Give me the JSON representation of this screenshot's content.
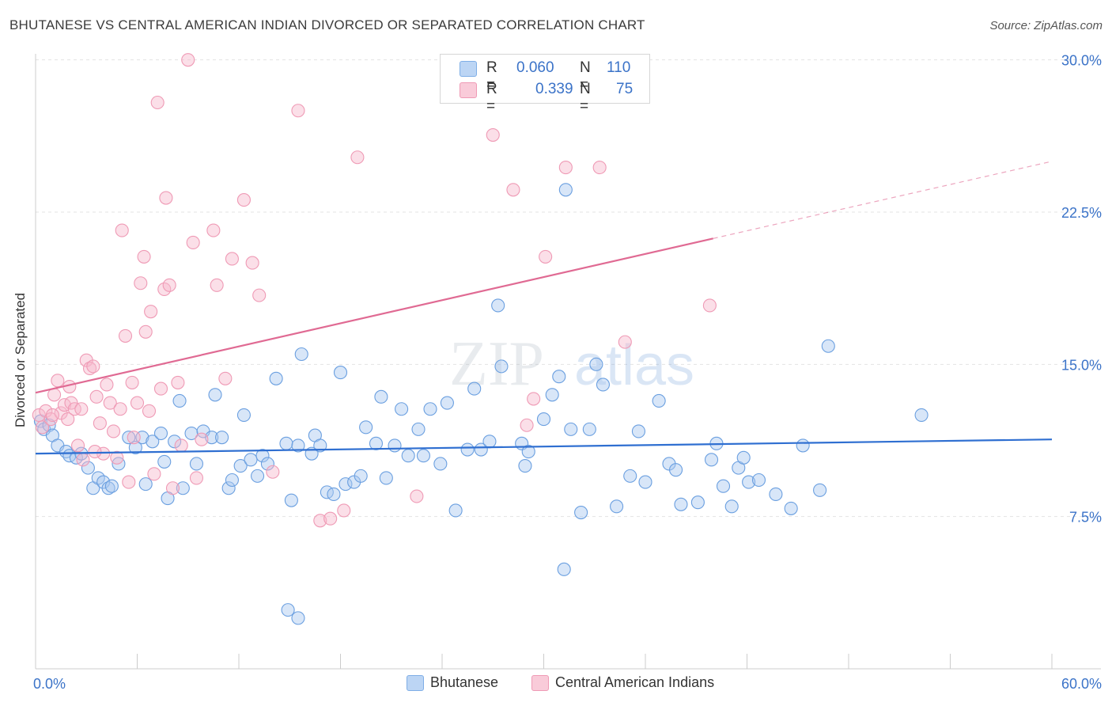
{
  "title": "BHUTANESE VS CENTRAL AMERICAN INDIAN DIVORCED OR SEPARATED CORRELATION CHART",
  "source": "Source: ZipAtlas.com",
  "watermark": {
    "zip": "ZIP",
    "atlas": "atlas"
  },
  "legend": {
    "r_label": "R =",
    "n_label": "N =",
    "rows": [
      {
        "r": "0.060",
        "n": "110",
        "color": "#a9c8f0"
      },
      {
        "r": "0.339",
        "n": "75",
        "color": "#f6b8cc"
      }
    ]
  },
  "chart_data": {
    "type": "scatter",
    "title": "BHUTANESE VS CENTRAL AMERICAN INDIAN DIVORCED OR SEPARATED CORRELATION CHART",
    "xlabel": "",
    "ylabel": "Divorced or Separated",
    "xlim": [
      0,
      60
    ],
    "ylim": [
      0,
      31
    ],
    "x_tick_labels": [
      "0.0%",
      "60.0%"
    ],
    "y_ticks": [
      7.5,
      15.0,
      22.5,
      30.0
    ],
    "y_tick_labels": [
      "7.5%",
      "15.0%",
      "22.5%",
      "30.0%"
    ],
    "grid": true,
    "legend_position": "bottom",
    "series": [
      {
        "name": "Bhutanese",
        "color": "#6a9fe0",
        "fill": "#a9c8f0",
        "line_color": "#2f6fd1",
        "trend": {
          "x0": 0,
          "y0": 10.6,
          "x1": 60,
          "y1": 11.3
        },
        "points": [
          [
            0.3,
            12.2
          ],
          [
            0.5,
            11.8
          ],
          [
            0.8,
            12.0
          ],
          [
            1.0,
            11.5
          ],
          [
            1.3,
            11.0
          ],
          [
            1.8,
            10.7
          ],
          [
            2.0,
            10.5
          ],
          [
            2.4,
            10.4
          ],
          [
            2.7,
            10.6
          ],
          [
            3.1,
            9.9
          ],
          [
            3.4,
            8.9
          ],
          [
            3.7,
            9.4
          ],
          [
            4.0,
            9.2
          ],
          [
            4.3,
            8.9
          ],
          [
            4.5,
            9.0
          ],
          [
            4.9,
            10.1
          ],
          [
            5.5,
            11.4
          ],
          [
            5.9,
            10.9
          ],
          [
            6.3,
            11.4
          ],
          [
            6.5,
            9.1
          ],
          [
            6.9,
            11.2
          ],
          [
            7.4,
            11.6
          ],
          [
            7.6,
            10.2
          ],
          [
            7.8,
            8.4
          ],
          [
            8.2,
            11.2
          ],
          [
            8.5,
            13.2
          ],
          [
            8.7,
            8.9
          ],
          [
            9.2,
            11.6
          ],
          [
            9.5,
            10.1
          ],
          [
            9.9,
            11.7
          ],
          [
            10.4,
            11.4
          ],
          [
            10.6,
            13.5
          ],
          [
            11.0,
            11.4
          ],
          [
            11.4,
            8.9
          ],
          [
            11.6,
            9.3
          ],
          [
            12.1,
            10.0
          ],
          [
            12.3,
            12.5
          ],
          [
            12.7,
            10.3
          ],
          [
            13.1,
            9.5
          ],
          [
            13.4,
            10.5
          ],
          [
            13.7,
            10.1
          ],
          [
            14.2,
            14.3
          ],
          [
            14.8,
            11.1
          ],
          [
            15.1,
            8.3
          ],
          [
            15.5,
            11.0
          ],
          [
            15.7,
            15.5
          ],
          [
            16.3,
            10.6
          ],
          [
            16.5,
            11.5
          ],
          [
            17.2,
            8.7
          ],
          [
            17.6,
            8.6
          ],
          [
            18.0,
            14.6
          ],
          [
            18.3,
            9.1
          ],
          [
            18.8,
            9.2
          ],
          [
            19.2,
            9.5
          ],
          [
            19.5,
            11.9
          ],
          [
            20.1,
            11.1
          ],
          [
            20.4,
            13.4
          ],
          [
            20.7,
            9.4
          ],
          [
            21.2,
            11.0
          ],
          [
            21.6,
            12.8
          ],
          [
            22.0,
            10.5
          ],
          [
            22.6,
            11.8
          ],
          [
            22.9,
            10.5
          ],
          [
            23.3,
            12.8
          ],
          [
            23.9,
            10.1
          ],
          [
            24.3,
            13.1
          ],
          [
            24.8,
            7.8
          ],
          [
            25.5,
            10.8
          ],
          [
            25.9,
            13.8
          ],
          [
            26.3,
            10.8
          ],
          [
            26.8,
            11.2
          ],
          [
            27.5,
            14.9
          ],
          [
            28.7,
            11.1
          ],
          [
            28.9,
            10.0
          ],
          [
            29.1,
            10.7
          ],
          [
            30.0,
            12.3
          ],
          [
            30.5,
            13.5
          ],
          [
            30.9,
            14.4
          ],
          [
            31.2,
            4.9
          ],
          [
            31.6,
            11.8
          ],
          [
            32.2,
            7.7
          ],
          [
            32.7,
            11.8
          ],
          [
            33.1,
            15.0
          ],
          [
            33.5,
            14.0
          ],
          [
            34.3,
            8.0
          ],
          [
            35.1,
            9.5
          ],
          [
            35.6,
            11.7
          ],
          [
            36.0,
            9.2
          ],
          [
            36.8,
            13.2
          ],
          [
            37.4,
            10.1
          ],
          [
            37.8,
            9.8
          ],
          [
            38.1,
            8.1
          ],
          [
            39.1,
            8.2
          ],
          [
            39.9,
            10.3
          ],
          [
            40.2,
            11.1
          ],
          [
            40.6,
            9.0
          ],
          [
            41.1,
            8.0
          ],
          [
            41.5,
            9.9
          ],
          [
            41.8,
            10.4
          ],
          [
            42.1,
            9.2
          ],
          [
            42.7,
            9.3
          ],
          [
            43.7,
            8.6
          ],
          [
            44.6,
            7.9
          ],
          [
            45.3,
            11.0
          ],
          [
            46.3,
            8.8
          ],
          [
            46.8,
            15.9
          ],
          [
            52.3,
            12.5
          ],
          [
            31.3,
            23.6
          ],
          [
            27.3,
            17.9
          ],
          [
            14.9,
            2.9
          ],
          [
            15.5,
            2.5
          ],
          [
            16.8,
            11.0
          ]
        ]
      },
      {
        "name": "Central American Indians",
        "color": "#ef9ab5",
        "fill": "#f6b8cc",
        "line_color": "#e06a93",
        "trend": {
          "x0": 0,
          "y0": 13.6,
          "x1": 40,
          "y1": 21.2
        },
        "trend_dashed": {
          "x0": 40,
          "y0": 21.2,
          "x1": 60,
          "y1": 25.0
        },
        "points": [
          [
            0.2,
            12.5
          ],
          [
            0.4,
            11.9
          ],
          [
            0.6,
            12.7
          ],
          [
            0.9,
            12.3
          ],
          [
            1.1,
            13.5
          ],
          [
            1.3,
            14.2
          ],
          [
            1.5,
            12.6
          ],
          [
            1.7,
            13.0
          ],
          [
            1.9,
            12.3
          ],
          [
            2.1,
            13.1
          ],
          [
            2.3,
            12.8
          ],
          [
            2.5,
            11.0
          ],
          [
            2.7,
            12.8
          ],
          [
            2.8,
            10.3
          ],
          [
            3.0,
            15.2
          ],
          [
            3.2,
            14.8
          ],
          [
            3.4,
            14.9
          ],
          [
            3.6,
            13.4
          ],
          [
            3.8,
            12.1
          ],
          [
            4.0,
            10.6
          ],
          [
            4.2,
            14.0
          ],
          [
            4.4,
            13.1
          ],
          [
            4.6,
            11.7
          ],
          [
            4.8,
            10.4
          ],
          [
            5.0,
            12.8
          ],
          [
            5.1,
            21.6
          ],
          [
            5.3,
            16.4
          ],
          [
            5.5,
            9.2
          ],
          [
            5.7,
            14.1
          ],
          [
            5.8,
            11.4
          ],
          [
            6.0,
            13.1
          ],
          [
            6.2,
            19.0
          ],
          [
            6.4,
            20.3
          ],
          [
            6.5,
            16.6
          ],
          [
            6.7,
            12.7
          ],
          [
            6.8,
            17.6
          ],
          [
            7.0,
            9.6
          ],
          [
            7.2,
            27.9
          ],
          [
            7.4,
            13.8
          ],
          [
            7.6,
            18.7
          ],
          [
            7.7,
            23.2
          ],
          [
            7.9,
            18.9
          ],
          [
            8.1,
            8.9
          ],
          [
            8.4,
            14.1
          ],
          [
            8.6,
            11.0
          ],
          [
            9.0,
            30.0
          ],
          [
            9.3,
            21.0
          ],
          [
            9.5,
            9.4
          ],
          [
            9.8,
            11.3
          ],
          [
            10.5,
            21.6
          ],
          [
            10.7,
            18.9
          ],
          [
            11.2,
            14.3
          ],
          [
            11.6,
            20.2
          ],
          [
            12.3,
            23.1
          ],
          [
            12.8,
            20.0
          ],
          [
            13.2,
            18.4
          ],
          [
            14.0,
            9.7
          ],
          [
            15.5,
            27.5
          ],
          [
            16.8,
            7.3
          ],
          [
            17.4,
            7.4
          ],
          [
            18.2,
            7.8
          ],
          [
            19.0,
            25.2
          ],
          [
            22.5,
            8.5
          ],
          [
            27.0,
            26.3
          ],
          [
            28.2,
            23.6
          ],
          [
            29.0,
            12.0
          ],
          [
            29.4,
            13.3
          ],
          [
            30.1,
            20.3
          ],
          [
            31.3,
            24.7
          ],
          [
            33.3,
            24.7
          ],
          [
            34.8,
            16.1
          ],
          [
            39.8,
            17.9
          ],
          [
            1.0,
            12.5
          ],
          [
            2.0,
            13.9
          ],
          [
            3.5,
            10.7
          ]
        ]
      }
    ]
  }
}
